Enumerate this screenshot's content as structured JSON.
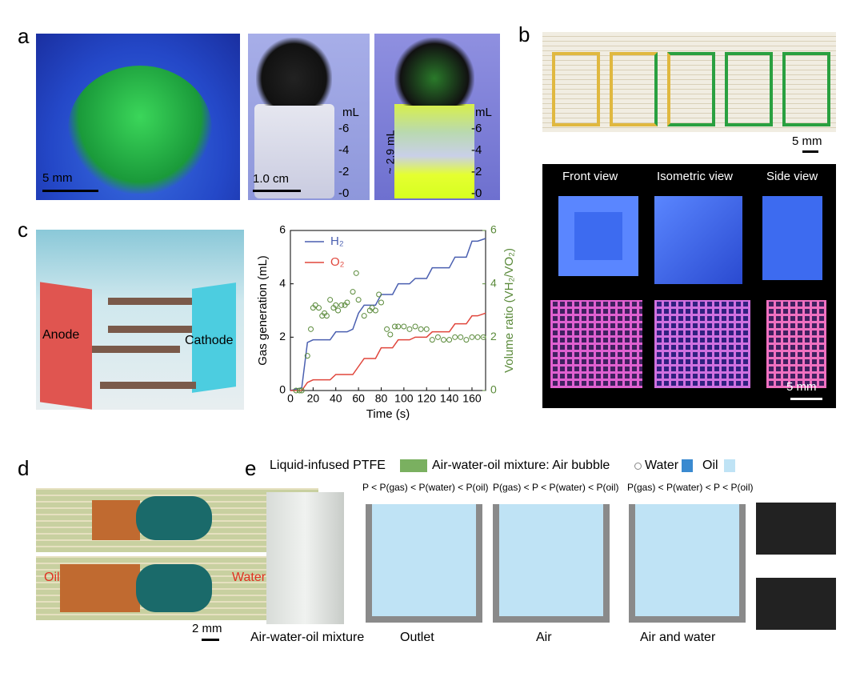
{
  "panels": {
    "a": {
      "label": "a",
      "scale_left": "5 mm",
      "scale_mid": "1.0 cm",
      "unit": "mL",
      "marks": [
        "-6",
        "-4",
        "-2",
        "-0"
      ],
      "volume": "~ 2.9 mL"
    },
    "b": {
      "label": "b",
      "scale_top": "5 mm",
      "views": [
        "Front view",
        "Isometric view",
        "Side view"
      ],
      "scale_bottom": "5 mm"
    },
    "c": {
      "label": "c",
      "anode": "Anode",
      "cathode": "Cathode"
    },
    "d": {
      "label": "d",
      "oil": "Oil",
      "water": "Water",
      "scale": "2 mm"
    },
    "e": {
      "label": "e",
      "legend": [
        "Liquid-infused PTFE",
        "Air-water-oil mixture: Air bubble",
        "Water",
        "Oil"
      ],
      "conditions": [
        "P < P(gas) < P(water) < P(oil)",
        "P(gas) < P < P(water) < P(oil)",
        "P(gas) < P(water) < P < P(oil)"
      ],
      "captions": [
        "Air-water-oil mixture",
        "Outlet",
        "Air",
        "Air and water"
      ]
    }
  },
  "chart_data": {
    "type": "line",
    "xlabel": "Time (s)",
    "ylabel": "Gas generation (mL)",
    "y2label": "Volume ratio (VH₂/VO₂)",
    "xlim": [
      0,
      172
    ],
    "xticks": [
      0,
      20,
      40,
      60,
      80,
      100,
      120,
      140,
      160
    ],
    "ylim": [
      0,
      6
    ],
    "yticks": [
      0,
      2,
      4,
      6
    ],
    "y2lim": [
      0,
      6
    ],
    "y2ticks": [
      0,
      2,
      4,
      6
    ],
    "series": [
      {
        "name": "H₂",
        "color": "#4a5fb0",
        "x": [
          0,
          10,
          15,
          20,
          35,
          40,
          50,
          55,
          60,
          65,
          75,
          80,
          90,
          95,
          105,
          110,
          120,
          125,
          140,
          145,
          155,
          160,
          165,
          172
        ],
        "values": [
          0,
          0.1,
          1.8,
          1.9,
          1.9,
          2.2,
          2.2,
          2.3,
          2.9,
          3.2,
          3.2,
          3.6,
          3.6,
          4.0,
          4.0,
          4.2,
          4.2,
          4.6,
          4.6,
          5.0,
          5.0,
          5.6,
          5.6,
          5.7
        ]
      },
      {
        "name": "O₂",
        "color": "#e0463c",
        "x": [
          0,
          10,
          15,
          20,
          35,
          40,
          50,
          55,
          60,
          65,
          75,
          80,
          90,
          95,
          105,
          110,
          120,
          125,
          140,
          145,
          155,
          160,
          165,
          172
        ],
        "values": [
          0,
          0,
          0.3,
          0.4,
          0.4,
          0.6,
          0.6,
          0.6,
          0.9,
          1.2,
          1.2,
          1.6,
          1.6,
          1.9,
          1.9,
          2.0,
          2.0,
          2.2,
          2.2,
          2.5,
          2.5,
          2.8,
          2.8,
          2.9
        ]
      },
      {
        "type": "scatter",
        "axis": "y2",
        "color": "#5a8a3a",
        "x": [
          5,
          8,
          10,
          15,
          18,
          20,
          22,
          25,
          28,
          30,
          32,
          35,
          38,
          40,
          42,
          45,
          48,
          50,
          55,
          58,
          60,
          65,
          70,
          72,
          75,
          78,
          80,
          85,
          88,
          92,
          95,
          100,
          105,
          110,
          115,
          120,
          125,
          130,
          135,
          140,
          145,
          150,
          155,
          160,
          165,
          170
        ],
        "values": [
          0,
          0,
          0,
          1.3,
          2.3,
          3.1,
          3.2,
          3.1,
          2.8,
          2.9,
          2.8,
          3.4,
          3.1,
          3.2,
          3.0,
          3.2,
          3.2,
          3.3,
          3.7,
          4.4,
          3.4,
          2.8,
          3.0,
          3.1,
          3.0,
          3.6,
          3.3,
          2.3,
          2.1,
          2.4,
          2.4,
          2.4,
          2.3,
          2.4,
          2.3,
          2.3,
          1.9,
          2.0,
          1.9,
          1.9,
          2.0,
          2.0,
          1.9,
          2.0,
          2.0,
          2.0
        ]
      }
    ]
  }
}
